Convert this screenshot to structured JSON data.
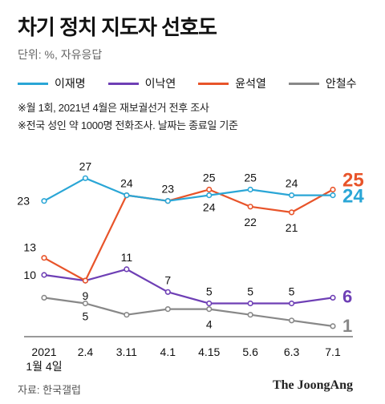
{
  "title": "차기 정치 지도자 선호도",
  "unit": "단위: %, 자유응답",
  "notes": [
    "※월 1회, 2021년 4월은 재보궐선거 전후 조사",
    "※전국 성인 약 1000명 전화조사. 날짜는 종료일 기준"
  ],
  "source": "자료: 한국갤럽",
  "brand": "The JoongAng",
  "colors": {
    "이재명": "#2AA6D6",
    "이낙연": "#6E3FB5",
    "윤석열": "#E8542A",
    "안철수": "#888888"
  },
  "chart_data": {
    "type": "line",
    "title": "차기 정치 지도자 선호도",
    "x": [
      "2021\n1월 4일",
      "2.4",
      "3.11",
      "4.1",
      "4.15",
      "5.6",
      "6.3",
      "7.1"
    ],
    "ylim": [
      0,
      30
    ],
    "grid": false,
    "legend": "top-left",
    "series": [
      {
        "name": "이재명",
        "values": [
          23,
          27,
          24,
          23,
          24,
          25,
          24,
          24
        ]
      },
      {
        "name": "이낙연",
        "values": [
          10,
          9,
          11,
          7,
          5,
          5,
          5,
          6
        ]
      },
      {
        "name": "윤석열",
        "values": [
          13,
          9,
          24,
          23,
          25,
          22,
          21,
          25
        ]
      },
      {
        "name": "안철수",
        "values": [
          6,
          5,
          3,
          4,
          4,
          3,
          2,
          1
        ]
      }
    ],
    "data_labels": {
      "이재명": [
        "23",
        "27",
        "24",
        "23",
        "24",
        "25",
        "24",
        "24"
      ],
      "이낙연": [
        "10",
        "9",
        "11",
        "7",
        "5",
        "5",
        "5",
        "6"
      ],
      "윤석열": [
        "13",
        "",
        "",
        "",
        "25",
        "22",
        "21",
        "25"
      ],
      "안철수": [
        "",
        "5",
        "",
        "",
        "4",
        "",
        "",
        "1"
      ]
    }
  }
}
